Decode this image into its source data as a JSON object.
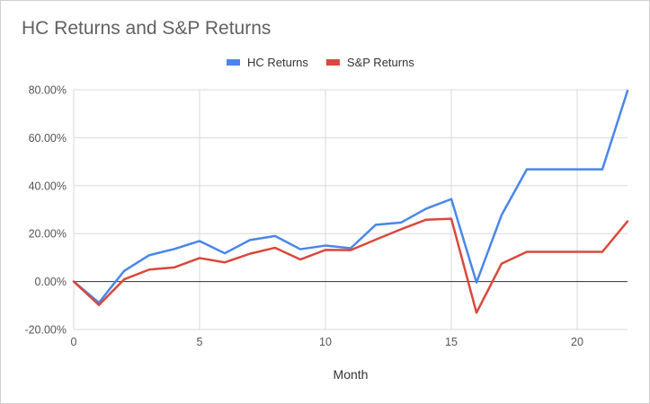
{
  "chart_data": {
    "type": "line",
    "title": "HC Returns and S&P Returns",
    "xlabel": "Month",
    "ylabel": "",
    "xlim": [
      0,
      22
    ],
    "ylim": [
      -20,
      80
    ],
    "x_ticks": [
      0,
      5,
      10,
      15,
      20
    ],
    "x_tick_labels": [
      "0",
      "5",
      "10",
      "15",
      "20"
    ],
    "y_ticks": [
      -20,
      0,
      20,
      40,
      60,
      80
    ],
    "y_tick_labels": [
      "-20.00%",
      "0.00%",
      "20.00%",
      "40.00%",
      "60.00%",
      "80.00%"
    ],
    "legend_position": "top-center",
    "grid": true,
    "x": [
      0,
      1,
      2,
      3,
      4,
      5,
      6,
      7,
      8,
      9,
      10,
      11,
      12,
      13,
      14,
      15,
      16,
      17,
      18,
      19,
      20,
      21,
      22
    ],
    "series": [
      {
        "name": "HC Returns",
        "color": "#4a86e8",
        "values": [
          0,
          -8.8,
          4.4,
          11,
          13.6,
          16.9,
          11.8,
          17.3,
          19,
          13.5,
          15,
          13.9,
          23.7,
          24.6,
          30.4,
          34.4,
          -0.4,
          27.8,
          46.8,
          46.8,
          46.8,
          46.8,
          79.6
        ]
      },
      {
        "name": "S&P Returns",
        "color": "#d9483b",
        "values": [
          0,
          -9.8,
          0.9,
          5,
          5.9,
          9.8,
          8,
          11.6,
          14.1,
          9.2,
          13.2,
          13.1,
          17.5,
          21.8,
          25.8,
          26.2,
          -13,
          7.5,
          12.4,
          12.4,
          12.4,
          12.4,
          25.1
        ]
      }
    ]
  }
}
